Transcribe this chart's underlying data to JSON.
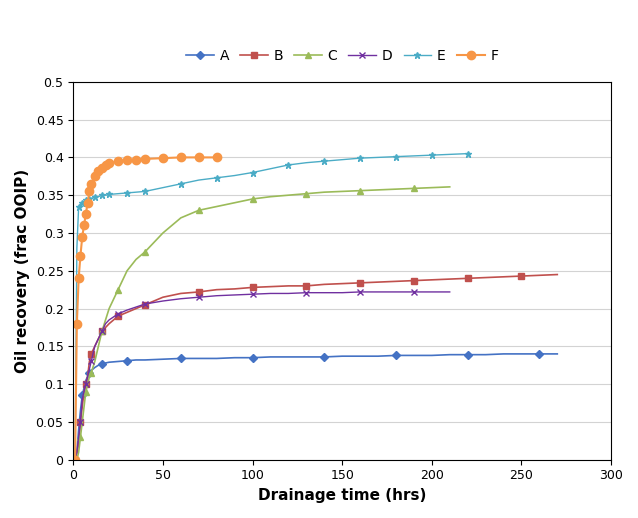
{
  "xlabel": "Drainage time (hrs)",
  "ylabel": "Oil recovery (frac OOIP)",
  "xlim": [
    0,
    300
  ],
  "ylim": [
    0,
    0.5
  ],
  "xticks": [
    0,
    50,
    100,
    150,
    200,
    250,
    300
  ],
  "yticks": [
    0,
    0.05,
    0.1,
    0.15,
    0.2,
    0.25,
    0.3,
    0.35,
    0.4,
    0.45,
    0.5
  ],
  "series": {
    "A": {
      "color": "#4472C4",
      "marker": "D",
      "markersize": 4,
      "linewidth": 1.2,
      "x": [
        1,
        2,
        3,
        4,
        5,
        6,
        7,
        8,
        9,
        10,
        12,
        14,
        16,
        18,
        20,
        25,
        30,
        35,
        40,
        50,
        60,
        70,
        80,
        90,
        100,
        110,
        120,
        130,
        140,
        150,
        160,
        170,
        180,
        190,
        200,
        210,
        220,
        230,
        240,
        250,
        260,
        270
      ],
      "y": [
        0.0,
        0.01,
        0.04,
        0.065,
        0.085,
        0.095,
        0.105,
        0.11,
        0.115,
        0.118,
        0.122,
        0.125,
        0.127,
        0.128,
        0.129,
        0.13,
        0.131,
        0.132,
        0.132,
        0.133,
        0.134,
        0.134,
        0.134,
        0.135,
        0.135,
        0.136,
        0.136,
        0.136,
        0.136,
        0.137,
        0.137,
        0.137,
        0.138,
        0.138,
        0.138,
        0.139,
        0.139,
        0.139,
        0.14,
        0.14,
        0.14,
        0.14
      ]
    },
    "B": {
      "color": "#C0504D",
      "marker": "s",
      "markersize": 5,
      "linewidth": 1.2,
      "x": [
        1,
        2,
        3,
        4,
        5,
        6,
        7,
        8,
        9,
        10,
        12,
        14,
        16,
        18,
        20,
        25,
        30,
        35,
        40,
        50,
        60,
        70,
        80,
        90,
        100,
        110,
        120,
        130,
        140,
        150,
        160,
        170,
        180,
        190,
        200,
        210,
        220,
        230,
        240,
        250,
        260,
        270
      ],
      "y": [
        0.0,
        0.01,
        0.02,
        0.05,
        0.07,
        0.09,
        0.1,
        0.11,
        0.13,
        0.14,
        0.15,
        0.16,
        0.17,
        0.175,
        0.18,
        0.19,
        0.195,
        0.2,
        0.205,
        0.215,
        0.22,
        0.222,
        0.225,
        0.226,
        0.228,
        0.229,
        0.23,
        0.23,
        0.232,
        0.233,
        0.234,
        0.235,
        0.236,
        0.237,
        0.238,
        0.239,
        0.24,
        0.241,
        0.242,
        0.243,
        0.244,
        0.245
      ]
    },
    "C": {
      "color": "#9BBB59",
      "marker": "^",
      "markersize": 5,
      "linewidth": 1.2,
      "x": [
        1,
        2,
        3,
        4,
        5,
        6,
        7,
        8,
        9,
        10,
        12,
        14,
        16,
        18,
        20,
        25,
        30,
        35,
        40,
        50,
        60,
        70,
        80,
        90,
        100,
        110,
        120,
        130,
        140,
        150,
        160,
        170,
        180,
        190,
        200,
        210
      ],
      "y": [
        0.0,
        0.0,
        0.01,
        0.03,
        0.05,
        0.07,
        0.09,
        0.1,
        0.11,
        0.115,
        0.13,
        0.15,
        0.17,
        0.185,
        0.2,
        0.225,
        0.25,
        0.265,
        0.275,
        0.3,
        0.32,
        0.33,
        0.335,
        0.34,
        0.345,
        0.348,
        0.35,
        0.352,
        0.354,
        0.355,
        0.356,
        0.357,
        0.358,
        0.359,
        0.36,
        0.361
      ]
    },
    "D": {
      "color": "#7030A0",
      "marker": "x",
      "markersize": 5,
      "linewidth": 1.0,
      "x": [
        1,
        2,
        3,
        4,
        5,
        6,
        7,
        8,
        9,
        10,
        12,
        14,
        16,
        18,
        20,
        25,
        30,
        35,
        40,
        50,
        60,
        70,
        80,
        90,
        100,
        110,
        120,
        130,
        140,
        150,
        160,
        170,
        180,
        190,
        200,
        210
      ],
      "y": [
        0.0,
        0.01,
        0.03,
        0.05,
        0.08,
        0.09,
        0.1,
        0.11,
        0.12,
        0.13,
        0.15,
        0.16,
        0.17,
        0.18,
        0.185,
        0.193,
        0.198,
        0.202,
        0.206,
        0.21,
        0.213,
        0.215,
        0.217,
        0.218,
        0.219,
        0.22,
        0.22,
        0.221,
        0.221,
        0.221,
        0.222,
        0.222,
        0.222,
        0.222,
        0.222,
        0.222
      ]
    },
    "E": {
      "color": "#4BACC6",
      "marker": "*",
      "markersize": 5,
      "linewidth": 1.0,
      "x": [
        1,
        2,
        3,
        4,
        5,
        6,
        7,
        8,
        9,
        10,
        12,
        14,
        16,
        18,
        20,
        25,
        30,
        35,
        40,
        50,
        60,
        70,
        80,
        90,
        100,
        110,
        120,
        130,
        140,
        150,
        160,
        170,
        180,
        190,
        200,
        210,
        220
      ],
      "y": [
        0.0,
        0.28,
        0.335,
        0.338,
        0.34,
        0.342,
        0.343,
        0.344,
        0.345,
        0.346,
        0.347,
        0.348,
        0.35,
        0.35,
        0.351,
        0.352,
        0.353,
        0.354,
        0.355,
        0.36,
        0.365,
        0.37,
        0.373,
        0.376,
        0.38,
        0.385,
        0.39,
        0.393,
        0.395,
        0.397,
        0.399,
        0.4,
        0.401,
        0.402,
        0.403,
        0.404,
        0.405
      ]
    },
    "F": {
      "color": "#F79646",
      "marker": "o",
      "markersize": 6,
      "linewidth": 1.5,
      "x": [
        1,
        2,
        3,
        4,
        5,
        6,
        7,
        8,
        9,
        10,
        12,
        14,
        16,
        18,
        20,
        25,
        30,
        35,
        40,
        50,
        60,
        70,
        80
      ],
      "y": [
        0.0,
        0.18,
        0.24,
        0.27,
        0.295,
        0.31,
        0.325,
        0.34,
        0.355,
        0.365,
        0.375,
        0.382,
        0.386,
        0.39,
        0.392,
        0.395,
        0.396,
        0.397,
        0.398,
        0.399,
        0.4,
        0.4,
        0.4
      ]
    }
  },
  "background_color": "#FFFFFF",
  "grid_color": "#D3D3D3"
}
